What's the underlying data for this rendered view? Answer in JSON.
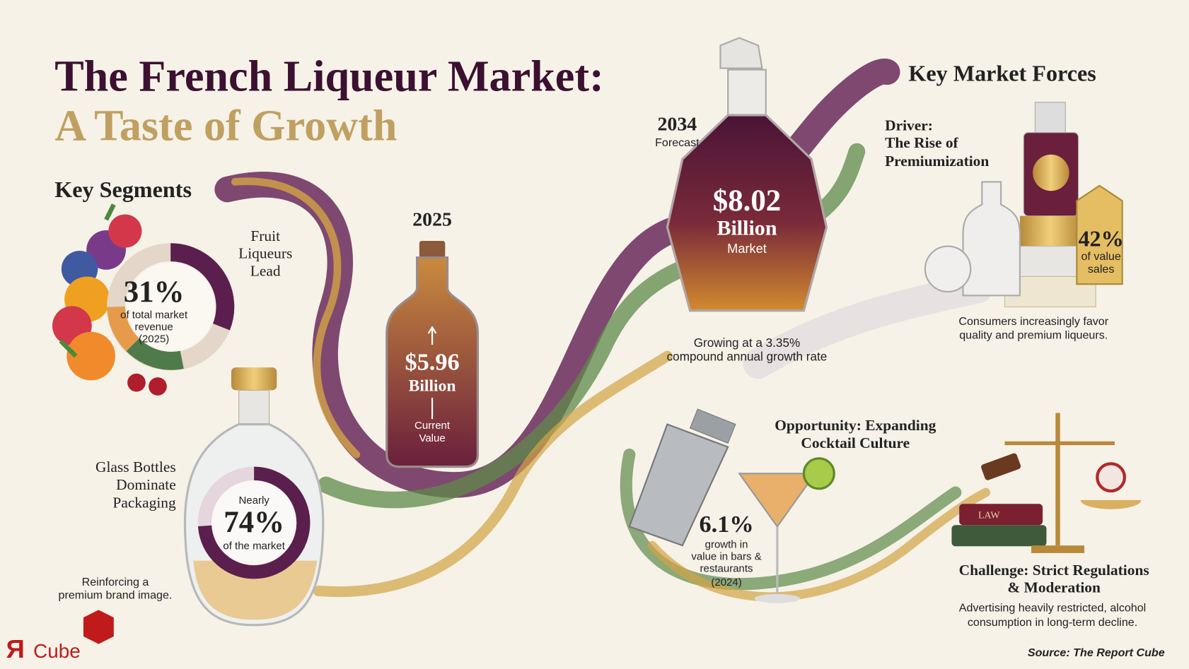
{
  "header": {
    "line1": "The French Liqueur Market:",
    "line2": "A Taste of Growth"
  },
  "key_segments": {
    "heading": "Key Segments",
    "fruit": {
      "title_lines": [
        "Fruit",
        "Liqueurs",
        "Lead"
      ],
      "share": {
        "value": 31,
        "label": "31%"
      },
      "caption_lines": [
        "of total market",
        "revenue",
        "(2025)"
      ]
    },
    "glass": {
      "title_lines": [
        "Glass Bottles",
        "Dominate",
        "Packaging"
      ],
      "prefix": "Nearly",
      "share": {
        "value": 74,
        "label": "74%"
      },
      "caption": "of the market",
      "note_lines": [
        "Reinforcing a",
        "premium brand image."
      ]
    }
  },
  "current": {
    "year": "2025",
    "value_lines": [
      "$5.96",
      "Billion"
    ],
    "caption_lines": [
      "Current",
      "Value"
    ]
  },
  "forecast": {
    "year": "2034",
    "year_caption": "Forecast",
    "value_lines": [
      "$8.02",
      "Billion"
    ],
    "caption": "Market",
    "growth_lines": [
      "Growing at a 3.35%",
      "compound annual growth rate"
    ]
  },
  "forces": {
    "heading": "Key Market Forces",
    "driver": {
      "title_lines": [
        "Driver:",
        "The Rise of",
        "Premiumization"
      ],
      "tag_value": "42%",
      "tag_caption_lines": [
        "of value",
        "sales"
      ],
      "note_lines": [
        "Consumers increasingly favor",
        "quality and premium liqueurs."
      ]
    },
    "opportunity": {
      "title_lines": [
        "Opportunity: Expanding",
        "Cocktail Culture"
      ],
      "value": "6.1%",
      "caption_lines": [
        "growth in",
        "value in bars &",
        "restaurants",
        "(2024)"
      ]
    },
    "challenge": {
      "title_lines": [
        "Challenge: Strict Regulations",
        "& Moderation"
      ],
      "book_label": "LAW",
      "note_lines": [
        "Advertising heavily restricted, alcohol",
        "consumption in long-term decline."
      ]
    }
  },
  "footer": {
    "logo_mark": "Я",
    "logo_text": "Cube",
    "source": "Source: The Report Cube"
  }
}
